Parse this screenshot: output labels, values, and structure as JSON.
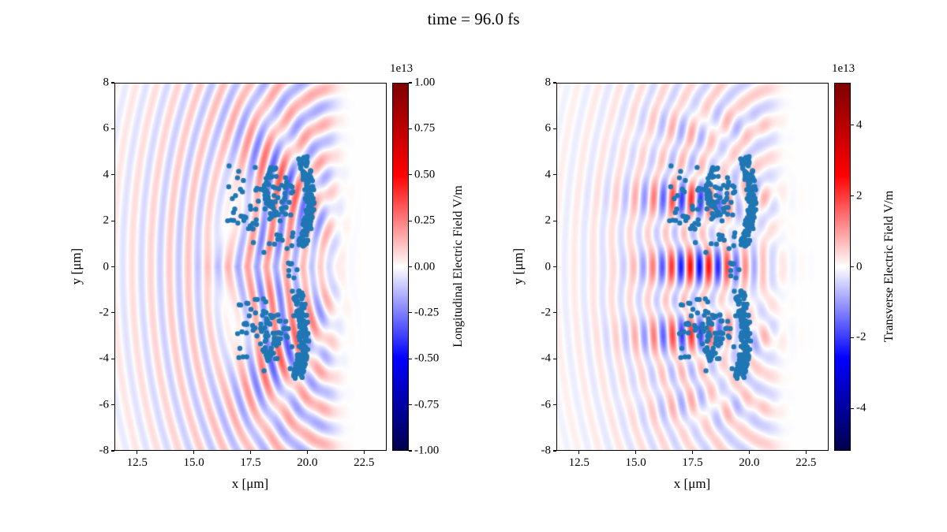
{
  "chart_data": {
    "type": "heatmap+scatter",
    "title": "time = 96.0 fs",
    "xlabel": "x [μm]",
    "ylabel": "y [μm]",
    "xlim": [
      11.5,
      23.5
    ],
    "ylim": [
      -8,
      8
    ],
    "xticks": [
      12.5,
      15.0,
      17.5,
      20.0,
      22.5
    ],
    "xtick_labels": [
      "12.5",
      "15.0",
      "17.5",
      "20.0",
      "22.5"
    ],
    "yticks": [
      8,
      6,
      4,
      2,
      0,
      -2,
      -4,
      -6,
      -8
    ],
    "ytick_labels": [
      "8",
      "6",
      "4",
      "2",
      "0",
      "-2",
      "-4",
      "-6",
      "-8"
    ],
    "colormap": {
      "name": "seismic-like diverging",
      "stops": [
        "#00004c",
        "#0000ff",
        "#ffffff",
        "#ff0000",
        "#7f0000"
      ]
    },
    "panels": [
      {
        "id": "longitudinal",
        "colorbar": {
          "label": "Longitudinal Electric Field V/m",
          "offset_text": "1e13",
          "vmin": -1.0,
          "vmax": 1.0,
          "ticks": [
            1.0,
            0.75,
            0.5,
            0.25,
            0.0,
            -0.25,
            -0.5,
            -0.75,
            -1.0
          ],
          "tick_labels": [
            "1.00",
            "0.75",
            "0.50",
            "0.25",
            "0.00",
            "-0.25",
            "-0.50",
            "-0.75",
            "-1.00"
          ]
        }
      },
      {
        "id": "transverse",
        "colorbar": {
          "label": "Transverse Electric Field V/m",
          "offset_text": "1e13",
          "vmin": -5.2,
          "vmax": 5.2,
          "ticks": [
            4,
            2,
            0,
            -2,
            -4
          ],
          "tick_labels": [
            "4",
            "2",
            "0",
            "-2",
            "-4"
          ]
        }
      }
    ],
    "scatter": {
      "color": "#1f77b4",
      "marker_radius": 3.2,
      "clusters": [
        {
          "shape": "arcband",
          "xc": 19.8,
          "width": 0.42,
          "y0": 0.95,
          "y1": 4.8,
          "bow": 0.3,
          "n": 135
        },
        {
          "shape": "arcband",
          "xc": 19.55,
          "width": 0.45,
          "y0": -4.85,
          "y1": -1.05,
          "bow": 0.3,
          "n": 135
        },
        {
          "shape": "arcband",
          "xc": 18.55,
          "width": 0.28,
          "y0": 2.2,
          "y1": 4.35,
          "bow": -0.35,
          "n": 35
        },
        {
          "shape": "arcband",
          "xc": 18.4,
          "width": 0.3,
          "y0": -4.1,
          "y1": -2.1,
          "bow": -0.3,
          "n": 28
        },
        {
          "shape": "blob",
          "cx": 18.85,
          "cy": 2.9,
          "sx": 0.4,
          "sy": 0.7,
          "n": 40
        },
        {
          "shape": "blob",
          "cx": 18.7,
          "cy": -3.1,
          "sx": 0.4,
          "sy": 0.7,
          "n": 38
        },
        {
          "shape": "uniform",
          "x0": 16.45,
          "x1": 18.35,
          "y0": 1.5,
          "y1": 4.4,
          "n": 30
        },
        {
          "shape": "uniform",
          "x0": 16.9,
          "x1": 18.5,
          "y0": -4.15,
          "y1": -1.35,
          "n": 26
        },
        {
          "shape": "blob",
          "cx": 18.95,
          "cy": 1.1,
          "sx": 0.6,
          "sy": 0.22,
          "n": 16
        },
        {
          "shape": "blob",
          "cx": 19.3,
          "cy": -0.2,
          "sx": 0.28,
          "sy": 0.18,
          "n": 7
        },
        {
          "shape": "blob",
          "cx": 17.35,
          "cy": 2.1,
          "sx": 0.3,
          "sy": 0.45,
          "n": 10
        },
        {
          "shape": "blob",
          "cx": 17.3,
          "cy": -2.0,
          "sx": 0.25,
          "sy": 0.5,
          "n": 9
        }
      ]
    },
    "field_model": {
      "wavelength": 0.82,
      "arc": {
        "cx": 21.5,
        "y_squash": 0.55,
        "amp": 0.16,
        "r_peak": 4.0,
        "r_width": 5.5
      },
      "damp_x": 20.6,
      "longitudinal": {
        "amp": 0.45,
        "x_center": 18.3,
        "x_width": 1.9,
        "y_width": 4.2,
        "tilt": 0.15,
        "gap_depth": 0.6,
        "gap_y": 0.9,
        "gap_x_center": 18.5,
        "gap_x_width": 2.2
      },
      "transverse": {
        "amp": 0.5,
        "x_center": 17.7,
        "x_width": 2.4,
        "y_width": 4.6,
        "y_mod_period": 3.1,
        "y_mod_min": 0.35,
        "arc_amp": 0.1
      }
    }
  }
}
